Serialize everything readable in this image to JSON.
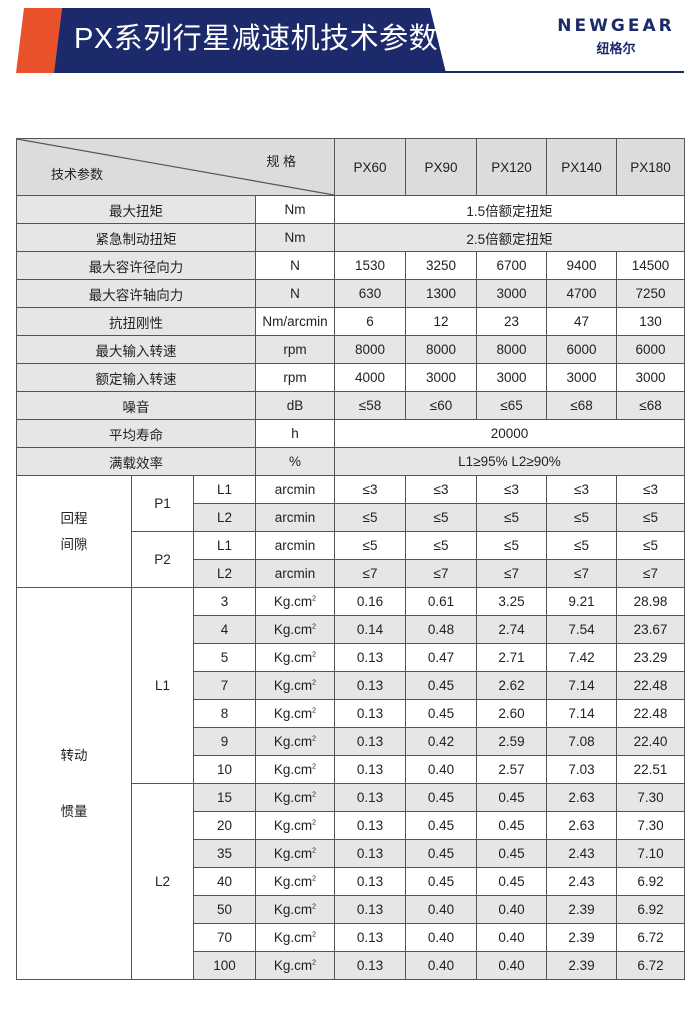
{
  "header": {
    "title": "PX系列行星减速机技术参数",
    "logo_en": "NEWGEAR",
    "logo_cn": "纽格尔",
    "accent_orange": "#e8512a",
    "navy": "#1c2a6b"
  },
  "table": {
    "corner_spec": "规 格",
    "corner_param": "技术参数",
    "models": [
      "PX60",
      "PX90",
      "PX120",
      "PX140",
      "PX180"
    ],
    "rows": [
      {
        "label": "最大扭矩",
        "unit": "Nm",
        "merged": "1.5倍额定扭矩"
      },
      {
        "label": "紧急制动扭矩",
        "unit": "Nm",
        "merged": "2.5倍额定扭矩"
      },
      {
        "label": "最大容许径向力",
        "unit": "N",
        "values": [
          "1530",
          "3250",
          "6700",
          "9400",
          "14500"
        ]
      },
      {
        "label": "最大容许轴向力",
        "unit": "N",
        "values": [
          "630",
          "1300",
          "3000",
          "4700",
          "7250"
        ]
      },
      {
        "label": "抗扭刚性",
        "unit": "Nm/arcmin",
        "values": [
          "6",
          "12",
          "23",
          "47",
          "130"
        ]
      },
      {
        "label": "最大输入转速",
        "unit": "rpm",
        "values": [
          "8000",
          "8000",
          "8000",
          "6000",
          "6000"
        ]
      },
      {
        "label": "额定输入转速",
        "unit": "rpm",
        "values": [
          "4000",
          "3000",
          "3000",
          "3000",
          "3000"
        ]
      },
      {
        "label": "噪音",
        "unit": "dB",
        "values": [
          "≤58",
          "≤60",
          "≤65",
          "≤68",
          "≤68"
        ]
      },
      {
        "label": "平均寿命",
        "unit": "h",
        "merged": "20000"
      },
      {
        "label": "满载效率",
        "unit": "%",
        "merged": "L1≥95%   L2≥90%"
      }
    ],
    "backlash": {
      "label_lines": [
        "回程",
        "间隙"
      ],
      "groups": [
        {
          "name": "P1",
          "rows": [
            {
              "stage": "L1",
              "unit": "arcmin",
              "values": [
                "≤3",
                "≤3",
                "≤3",
                "≤3",
                "≤3"
              ]
            },
            {
              "stage": "L2",
              "unit": "arcmin",
              "values": [
                "≤5",
                "≤5",
                "≤5",
                "≤5",
                "≤5"
              ]
            }
          ]
        },
        {
          "name": "P2",
          "rows": [
            {
              "stage": "L1",
              "unit": "arcmin",
              "values": [
                "≤5",
                "≤5",
                "≤5",
                "≤5",
                "≤5"
              ]
            },
            {
              "stage": "L2",
              "unit": "arcmin",
              "values": [
                "≤7",
                "≤7",
                "≤7",
                "≤7",
                "≤7"
              ]
            }
          ]
        }
      ]
    },
    "inertia": {
      "label_lines": [
        "转动",
        "惯量"
      ],
      "unit": "Kg.cm",
      "unit_sup": "2",
      "groups": [
        {
          "name": "L1",
          "rows": [
            {
              "ratio": "3",
              "values": [
                "0.16",
                "0.61",
                "3.25",
                "9.21",
                "28.98"
              ]
            },
            {
              "ratio": "4",
              "values": [
                "0.14",
                "0.48",
                "2.74",
                "7.54",
                "23.67"
              ]
            },
            {
              "ratio": "5",
              "values": [
                "0.13",
                "0.47",
                "2.71",
                "7.42",
                "23.29"
              ]
            },
            {
              "ratio": "7",
              "values": [
                "0.13",
                "0.45",
                "2.62",
                "7.14",
                "22.48"
              ]
            },
            {
              "ratio": "8",
              "values": [
                "0.13",
                "0.45",
                "2.60",
                "7.14",
                "22.48"
              ]
            },
            {
              "ratio": "9",
              "values": [
                "0.13",
                "0.42",
                "2.59",
                "7.08",
                "22.40"
              ]
            },
            {
              "ratio": "10",
              "values": [
                "0.13",
                "0.40",
                "2.57",
                "7.03",
                "22.51"
              ]
            }
          ]
        },
        {
          "name": "L2",
          "rows": [
            {
              "ratio": "15",
              "values": [
                "0.13",
                "0.45",
                "0.45",
                "2.63",
                "7.30"
              ]
            },
            {
              "ratio": "20",
              "values": [
                "0.13",
                "0.45",
                "0.45",
                "2.63",
                "7.30"
              ]
            },
            {
              "ratio": "35",
              "values": [
                "0.13",
                "0.45",
                "0.45",
                "2.43",
                "7.10"
              ]
            },
            {
              "ratio": "40",
              "values": [
                "0.13",
                "0.45",
                "0.45",
                "2.43",
                "6.92"
              ]
            },
            {
              "ratio": "50",
              "values": [
                "0.13",
                "0.40",
                "0.40",
                "2.39",
                "6.92"
              ]
            },
            {
              "ratio": "70",
              "values": [
                "0.13",
                "0.40",
                "0.40",
                "2.39",
                "6.72"
              ]
            },
            {
              "ratio": "100",
              "values": [
                "0.13",
                "0.40",
                "0.40",
                "2.39",
                "6.72"
              ]
            }
          ]
        }
      ]
    }
  }
}
